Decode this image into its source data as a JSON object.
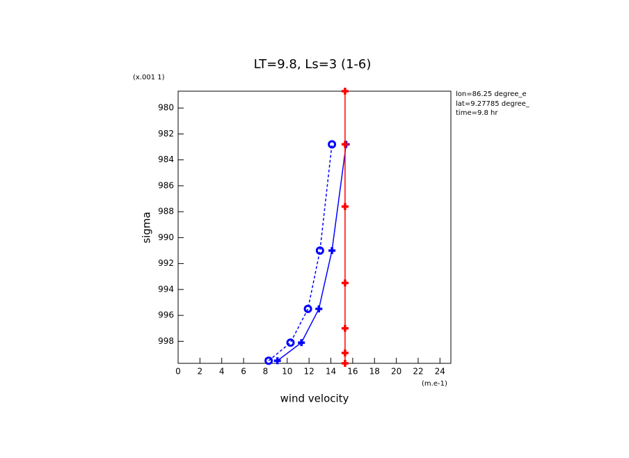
{
  "chart_data": {
    "type": "line",
    "title": "LT=9.8, Ls=3 (1-6)",
    "x_label": "wind velocity",
    "y_label": "sigma",
    "x_units": "(m.e-1)",
    "y_units": "(x.001 1)",
    "annotations": [
      "lon=86.25 degree_e",
      "lat=9.27785 degree_",
      "time=9.8 hr"
    ],
    "xlim": [
      0,
      25
    ],
    "ylim": [
      999.7,
      978.7
    ],
    "xticks": [
      0,
      2,
      4,
      6,
      8,
      10,
      12,
      14,
      16,
      18,
      20,
      22,
      24
    ],
    "yticks": [
      980,
      982,
      984,
      986,
      988,
      990,
      992,
      994,
      996,
      998
    ],
    "series": [
      {
        "color": "#0000ff",
        "dash": "dashed",
        "marker": "circle",
        "x": [
          8.3,
          10.3,
          11.9,
          13.0,
          14.1
        ],
        "y": [
          999.5,
          998.1,
          995.5,
          991.0,
          982.8
        ]
      },
      {
        "color": "#0000ff",
        "dash": "solid",
        "marker": "cross",
        "x": [
          9.1,
          11.3,
          12.9,
          14.1,
          15.4
        ],
        "y": [
          999.5,
          998.1,
          995.5,
          991.0,
          982.8
        ]
      },
      {
        "color": "#ff0000",
        "dash": "solid",
        "marker": "cross",
        "x": [
          15.3,
          15.3,
          15.3,
          15.3,
          15.3,
          15.3,
          15.3
        ],
        "y": [
          999.7,
          998.9,
          997.0,
          993.5,
          987.6,
          982.8,
          978.7
        ]
      }
    ]
  }
}
